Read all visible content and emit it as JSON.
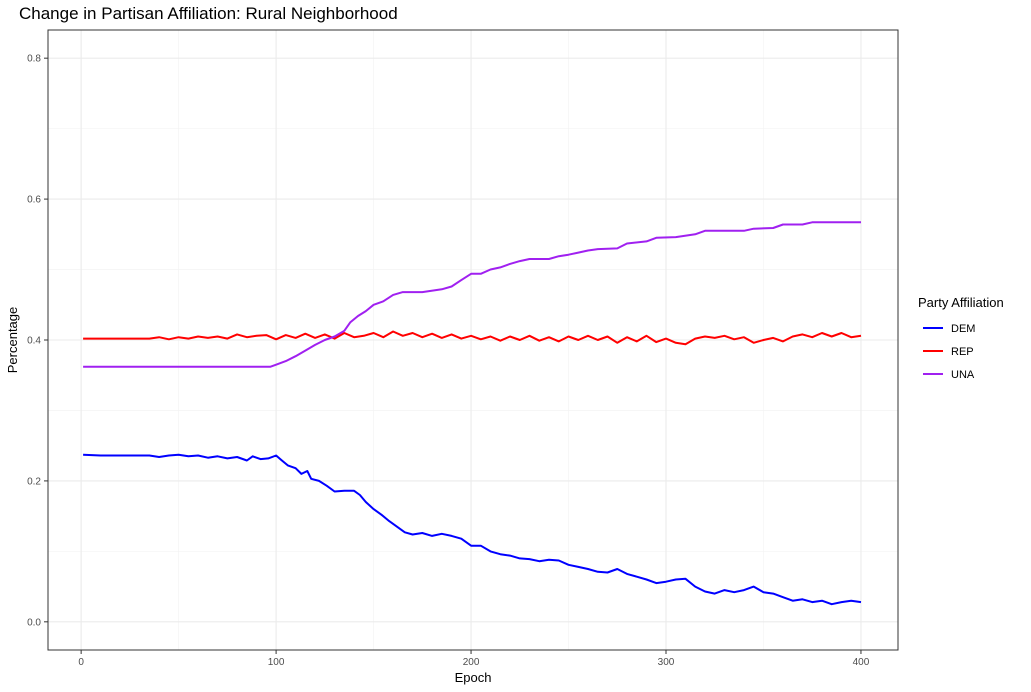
{
  "chart_data": {
    "type": "line",
    "title": "Change in Partisan Affiliation: Rural Neighborhood",
    "xlabel": "Epoch",
    "ylabel": "Percentage",
    "xlim": [
      -17,
      419
    ],
    "ylim": [
      -0.04,
      0.84
    ],
    "x_ticks": [
      0,
      100,
      200,
      300,
      400
    ],
    "x_tick_labels": [
      "0",
      "100",
      "200",
      "300",
      "400"
    ],
    "y_ticks": [
      0.0,
      0.2,
      0.4,
      0.6,
      0.8
    ],
    "y_tick_labels": [
      "0.0",
      "0.2",
      "0.4",
      "0.6",
      "0.8"
    ],
    "grid": true,
    "legend": {
      "title": "Party Affiliation",
      "position": "right"
    },
    "series": [
      {
        "name": "DEM",
        "color": "#0000ff",
        "points": [
          [
            1,
            0.237
          ],
          [
            10,
            0.236
          ],
          [
            20,
            0.236
          ],
          [
            35,
            0.236
          ],
          [
            40,
            0.234
          ],
          [
            45,
            0.236
          ],
          [
            50,
            0.237
          ],
          [
            55,
            0.235
          ],
          [
            60,
            0.236
          ],
          [
            65,
            0.233
          ],
          [
            70,
            0.235
          ],
          [
            75,
            0.232
          ],
          [
            80,
            0.234
          ],
          [
            85,
            0.229
          ],
          [
            88,
            0.235
          ],
          [
            92,
            0.231
          ],
          [
            96,
            0.232
          ],
          [
            100,
            0.236
          ],
          [
            103,
            0.229
          ],
          [
            106,
            0.222
          ],
          [
            110,
            0.218
          ],
          [
            113,
            0.21
          ],
          [
            116,
            0.214
          ],
          [
            118,
            0.203
          ],
          [
            122,
            0.2
          ],
          [
            126,
            0.193
          ],
          [
            130,
            0.185
          ],
          [
            135,
            0.186
          ],
          [
            140,
            0.186
          ],
          [
            143,
            0.18
          ],
          [
            146,
            0.17
          ],
          [
            150,
            0.16
          ],
          [
            154,
            0.152
          ],
          [
            158,
            0.143
          ],
          [
            162,
            0.135
          ],
          [
            166,
            0.127
          ],
          [
            170,
            0.124
          ],
          [
            175,
            0.126
          ],
          [
            180,
            0.122
          ],
          [
            185,
            0.125
          ],
          [
            190,
            0.122
          ],
          [
            195,
            0.118
          ],
          [
            200,
            0.108
          ],
          [
            205,
            0.108
          ],
          [
            210,
            0.1
          ],
          [
            215,
            0.096
          ],
          [
            220,
            0.094
          ],
          [
            225,
            0.09
          ],
          [
            230,
            0.089
          ],
          [
            235,
            0.086
          ],
          [
            240,
            0.088
          ],
          [
            245,
            0.087
          ],
          [
            250,
            0.081
          ],
          [
            255,
            0.078
          ],
          [
            260,
            0.075
          ],
          [
            265,
            0.071
          ],
          [
            270,
            0.07
          ],
          [
            275,
            0.075
          ],
          [
            280,
            0.068
          ],
          [
            285,
            0.064
          ],
          [
            290,
            0.06
          ],
          [
            295,
            0.055
          ],
          [
            300,
            0.057
          ],
          [
            305,
            0.06
          ],
          [
            310,
            0.061
          ],
          [
            315,
            0.05
          ],
          [
            320,
            0.043
          ],
          [
            325,
            0.04
          ],
          [
            330,
            0.045
          ],
          [
            335,
            0.042
          ],
          [
            340,
            0.045
          ],
          [
            345,
            0.05
          ],
          [
            350,
            0.042
          ],
          [
            355,
            0.04
          ],
          [
            360,
            0.035
          ],
          [
            365,
            0.03
          ],
          [
            370,
            0.032
          ],
          [
            375,
            0.028
          ],
          [
            380,
            0.03
          ],
          [
            385,
            0.025
          ],
          [
            390,
            0.028
          ],
          [
            395,
            0.03
          ],
          [
            400,
            0.028
          ]
        ]
      },
      {
        "name": "REP",
        "color": "#ff0000",
        "points": [
          [
            1,
            0.402
          ],
          [
            35,
            0.402
          ],
          [
            40,
            0.404
          ],
          [
            45,
            0.401
          ],
          [
            50,
            0.404
          ],
          [
            55,
            0.402
          ],
          [
            60,
            0.405
          ],
          [
            65,
            0.403
          ],
          [
            70,
            0.405
          ],
          [
            75,
            0.402
          ],
          [
            80,
            0.408
          ],
          [
            85,
            0.404
          ],
          [
            90,
            0.406
          ],
          [
            95,
            0.407
          ],
          [
            100,
            0.401
          ],
          [
            105,
            0.407
          ],
          [
            110,
            0.403
          ],
          [
            115,
            0.409
          ],
          [
            120,
            0.403
          ],
          [
            125,
            0.408
          ],
          [
            130,
            0.402
          ],
          [
            135,
            0.41
          ],
          [
            140,
            0.404
          ],
          [
            145,
            0.406
          ],
          [
            150,
            0.41
          ],
          [
            155,
            0.404
          ],
          [
            160,
            0.412
          ],
          [
            165,
            0.406
          ],
          [
            170,
            0.41
          ],
          [
            175,
            0.404
          ],
          [
            180,
            0.409
          ],
          [
            185,
            0.403
          ],
          [
            190,
            0.408
          ],
          [
            195,
            0.402
          ],
          [
            200,
            0.406
          ],
          [
            205,
            0.401
          ],
          [
            210,
            0.405
          ],
          [
            215,
            0.399
          ],
          [
            220,
            0.405
          ],
          [
            225,
            0.4
          ],
          [
            230,
            0.406
          ],
          [
            235,
            0.399
          ],
          [
            240,
            0.404
          ],
          [
            245,
            0.398
          ],
          [
            250,
            0.405
          ],
          [
            255,
            0.4
          ],
          [
            260,
            0.406
          ],
          [
            265,
            0.4
          ],
          [
            270,
            0.405
          ],
          [
            275,
            0.396
          ],
          [
            280,
            0.404
          ],
          [
            285,
            0.398
          ],
          [
            290,
            0.406
          ],
          [
            295,
            0.397
          ],
          [
            300,
            0.402
          ],
          [
            305,
            0.396
          ],
          [
            310,
            0.394
          ],
          [
            315,
            0.402
          ],
          [
            320,
            0.405
          ],
          [
            325,
            0.403
          ],
          [
            330,
            0.406
          ],
          [
            335,
            0.401
          ],
          [
            340,
            0.404
          ],
          [
            345,
            0.396
          ],
          [
            350,
            0.4
          ],
          [
            355,
            0.403
          ],
          [
            360,
            0.398
          ],
          [
            365,
            0.405
          ],
          [
            370,
            0.408
          ],
          [
            375,
            0.404
          ],
          [
            380,
            0.41
          ],
          [
            385,
            0.405
          ],
          [
            390,
            0.41
          ],
          [
            395,
            0.404
          ],
          [
            400,
            0.406
          ]
        ]
      },
      {
        "name": "UNA",
        "color": "#a020f0",
        "points": [
          [
            1,
            0.362
          ],
          [
            97,
            0.362
          ],
          [
            100,
            0.365
          ],
          [
            105,
            0.37
          ],
          [
            110,
            0.377
          ],
          [
            115,
            0.385
          ],
          [
            120,
            0.393
          ],
          [
            125,
            0.4
          ],
          [
            130,
            0.405
          ],
          [
            135,
            0.413
          ],
          [
            138,
            0.425
          ],
          [
            142,
            0.434
          ],
          [
            146,
            0.441
          ],
          [
            150,
            0.45
          ],
          [
            155,
            0.455
          ],
          [
            160,
            0.464
          ],
          [
            165,
            0.468
          ],
          [
            175,
            0.468
          ],
          [
            185,
            0.472
          ],
          [
            190,
            0.476
          ],
          [
            195,
            0.485
          ],
          [
            200,
            0.494
          ],
          [
            205,
            0.494
          ],
          [
            210,
            0.5
          ],
          [
            215,
            0.503
          ],
          [
            220,
            0.508
          ],
          [
            225,
            0.512
          ],
          [
            230,
            0.515
          ],
          [
            240,
            0.515
          ],
          [
            245,
            0.519
          ],
          [
            250,
            0.521
          ],
          [
            255,
            0.524
          ],
          [
            260,
            0.527
          ],
          [
            265,
            0.529
          ],
          [
            275,
            0.53
          ],
          [
            280,
            0.537
          ],
          [
            290,
            0.54
          ],
          [
            295,
            0.545
          ],
          [
            305,
            0.546
          ],
          [
            315,
            0.55
          ],
          [
            320,
            0.555
          ],
          [
            330,
            0.555
          ],
          [
            340,
            0.555
          ],
          [
            345,
            0.558
          ],
          [
            355,
            0.559
          ],
          [
            360,
            0.564
          ],
          [
            370,
            0.564
          ],
          [
            375,
            0.567
          ],
          [
            400,
            0.567
          ]
        ]
      }
    ]
  }
}
